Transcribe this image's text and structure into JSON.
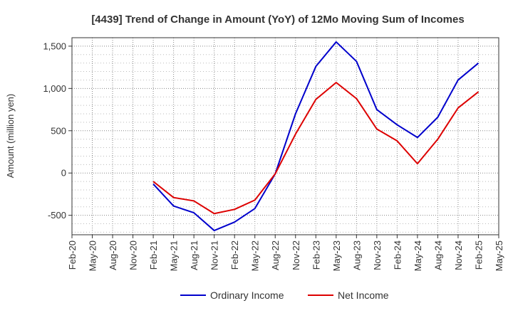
{
  "chart_data": {
    "type": "line",
    "title": "[4439]  Trend of Change in Amount (YoY) of 12Mo Moving Sum of Incomes",
    "xlabel": "",
    "ylabel": "Amount (million yen)",
    "ylim": [
      -730,
      1600
    ],
    "yticks": [
      -500,
      0,
      500,
      1000,
      1500
    ],
    "ytick_labels": [
      "-500",
      "0",
      "500",
      "1,000",
      "1,500"
    ],
    "categories": [
      "Feb-20",
      "May-20",
      "Aug-20",
      "Nov-20",
      "Feb-21",
      "May-21",
      "Aug-21",
      "Nov-21",
      "Feb-22",
      "May-22",
      "Aug-22",
      "Nov-22",
      "Feb-23",
      "May-23",
      "Aug-23",
      "Nov-23",
      "Feb-24",
      "May-24",
      "Aug-24",
      "Nov-24",
      "Feb-25",
      "May-25"
    ],
    "grid": true,
    "legend_position": "bottom",
    "series": [
      {
        "name": "Ordinary Income",
        "color": "#0000cc",
        "values": [
          null,
          null,
          null,
          null,
          -130,
          -390,
          -470,
          -680,
          -580,
          -420,
          -10,
          700,
          1260,
          1550,
          1320,
          750,
          570,
          420,
          660,
          1100,
          1300,
          null
        ]
      },
      {
        "name": "Net Income",
        "color": "#dd0000",
        "values": [
          null,
          null,
          null,
          null,
          -100,
          -290,
          -330,
          -480,
          -430,
          -320,
          -10,
          460,
          870,
          1070,
          880,
          520,
          380,
          110,
          400,
          770,
          960,
          null
        ]
      }
    ]
  }
}
